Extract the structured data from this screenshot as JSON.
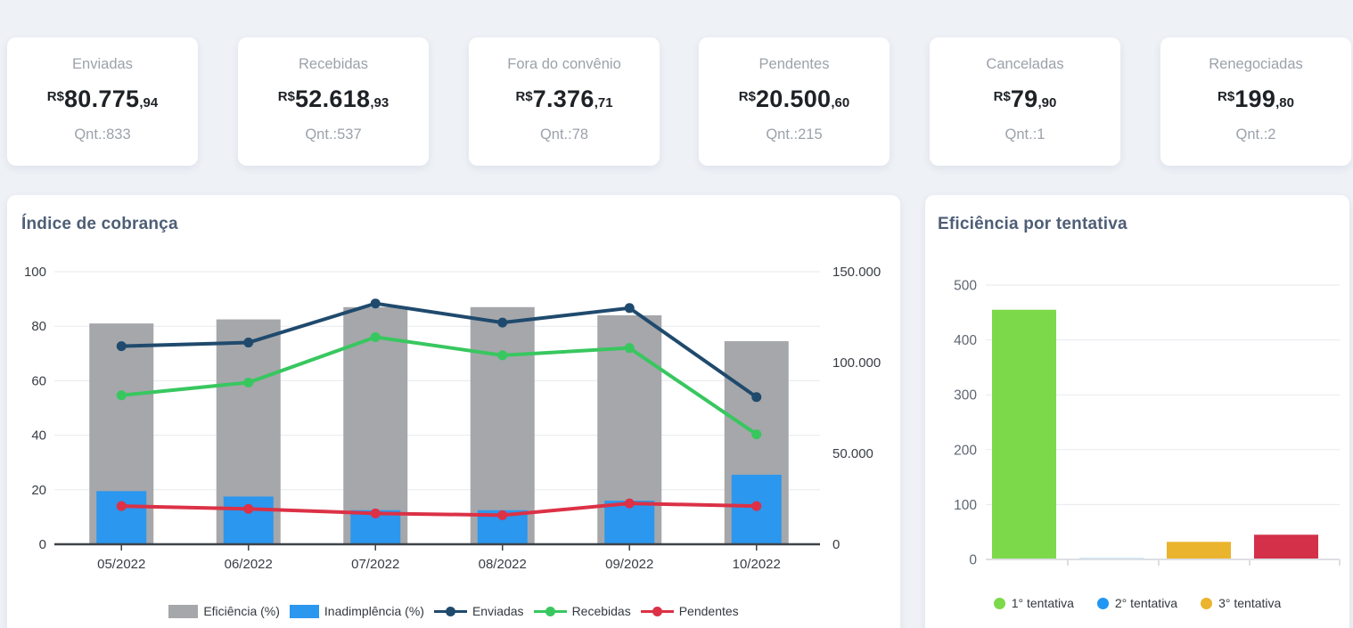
{
  "cards": [
    {
      "label": "Enviadas",
      "currency": "R$",
      "amount": "80.775",
      "cents": ",94",
      "quantity": "Qnt.:833"
    },
    {
      "label": "Recebidas",
      "currency": "R$",
      "amount": "52.618",
      "cents": ",93",
      "quantity": "Qnt.:537"
    },
    {
      "label": "Fora do convênio",
      "currency": "R$",
      "amount": "7.376",
      "cents": ",71",
      "quantity": "Qnt.:78"
    },
    {
      "label": "Pendentes",
      "currency": "R$",
      "amount": "20.500",
      "cents": ",60",
      "quantity": "Qnt.:215"
    },
    {
      "label": "Canceladas",
      "currency": "R$",
      "amount": "79",
      "cents": ",90",
      "quantity": "Qnt.:1"
    },
    {
      "label": "Renegociadas",
      "currency": "R$",
      "amount": "199",
      "cents": ",80",
      "quantity": "Qnt.:2"
    }
  ],
  "colors": {
    "background": "#EEF1F6",
    "panel": "#FFFFFF",
    "title_text": "#4E5E76",
    "muted_text": "#9CA2AA",
    "value_text": "#1E2125",
    "gridline": "#E8EAEE",
    "axis_dark": "#3D4248",
    "axis_light": "#DDDFE3"
  },
  "chart_data": [
    {
      "type": "combo-bar-line",
      "title": "Índice de cobrança",
      "categories": [
        "05/2022",
        "06/2022",
        "07/2022",
        "08/2022",
        "09/2022",
        "10/2022"
      ],
      "bar_series": [
        {
          "name": "Eficiência (%)",
          "axis": "left",
          "color": "#A5A7AB",
          "values": [
            81,
            82.5,
            87,
            87,
            84,
            74.5
          ]
        },
        {
          "name": "Inadimplência (%)",
          "axis": "left",
          "color": "#2B97EE",
          "values": [
            19.5,
            17.5,
            12.5,
            12.5,
            16,
            25.5
          ]
        }
      ],
      "line_series": [
        {
          "name": "Enviadas",
          "axis": "right",
          "color": "#1F4A6D",
          "values": [
            109000,
            111000,
            132500,
            122000,
            130000,
            81000
          ]
        },
        {
          "name": "Recebidas",
          "axis": "right",
          "color": "#38C75F",
          "values": [
            82000,
            89000,
            114000,
            104000,
            108000,
            60500
          ]
        },
        {
          "name": "Pendentes",
          "axis": "right",
          "color": "#DC3146",
          "values": [
            21000,
            19500,
            17000,
            16000,
            22500,
            21000
          ]
        }
      ],
      "left_axis": {
        "min": 0,
        "max": 100,
        "ticks": [
          "0",
          "20",
          "40",
          "60",
          "80",
          "100"
        ]
      },
      "right_axis": {
        "min": 0,
        "max": 150000,
        "ticks": [
          "0",
          "50.000",
          "100.000",
          "150.000"
        ]
      },
      "grid": true,
      "legend_position": "bottom"
    },
    {
      "type": "bar",
      "title": "Eficiência por tentativa",
      "bars": [
        {
          "legend": "1° tentativa",
          "color": "#7CD94A",
          "value": 455
        },
        {
          "legend": "2° tentativa",
          "color": "#2196F3",
          "value": 2
        },
        {
          "legend": "3° tentativa",
          "color": "#EBB42E",
          "value": 32
        },
        {
          "legend": null,
          "color": "#D4304A",
          "value": 45
        }
      ],
      "ylim": [
        0,
        500
      ],
      "yticks": [
        "0",
        "100",
        "200",
        "300",
        "400",
        "500"
      ],
      "grid": true,
      "legend_position": "bottom",
      "legend_visible_entries": [
        "1° tentativa",
        "2° tentativa",
        "3° tentativa"
      ]
    }
  ]
}
